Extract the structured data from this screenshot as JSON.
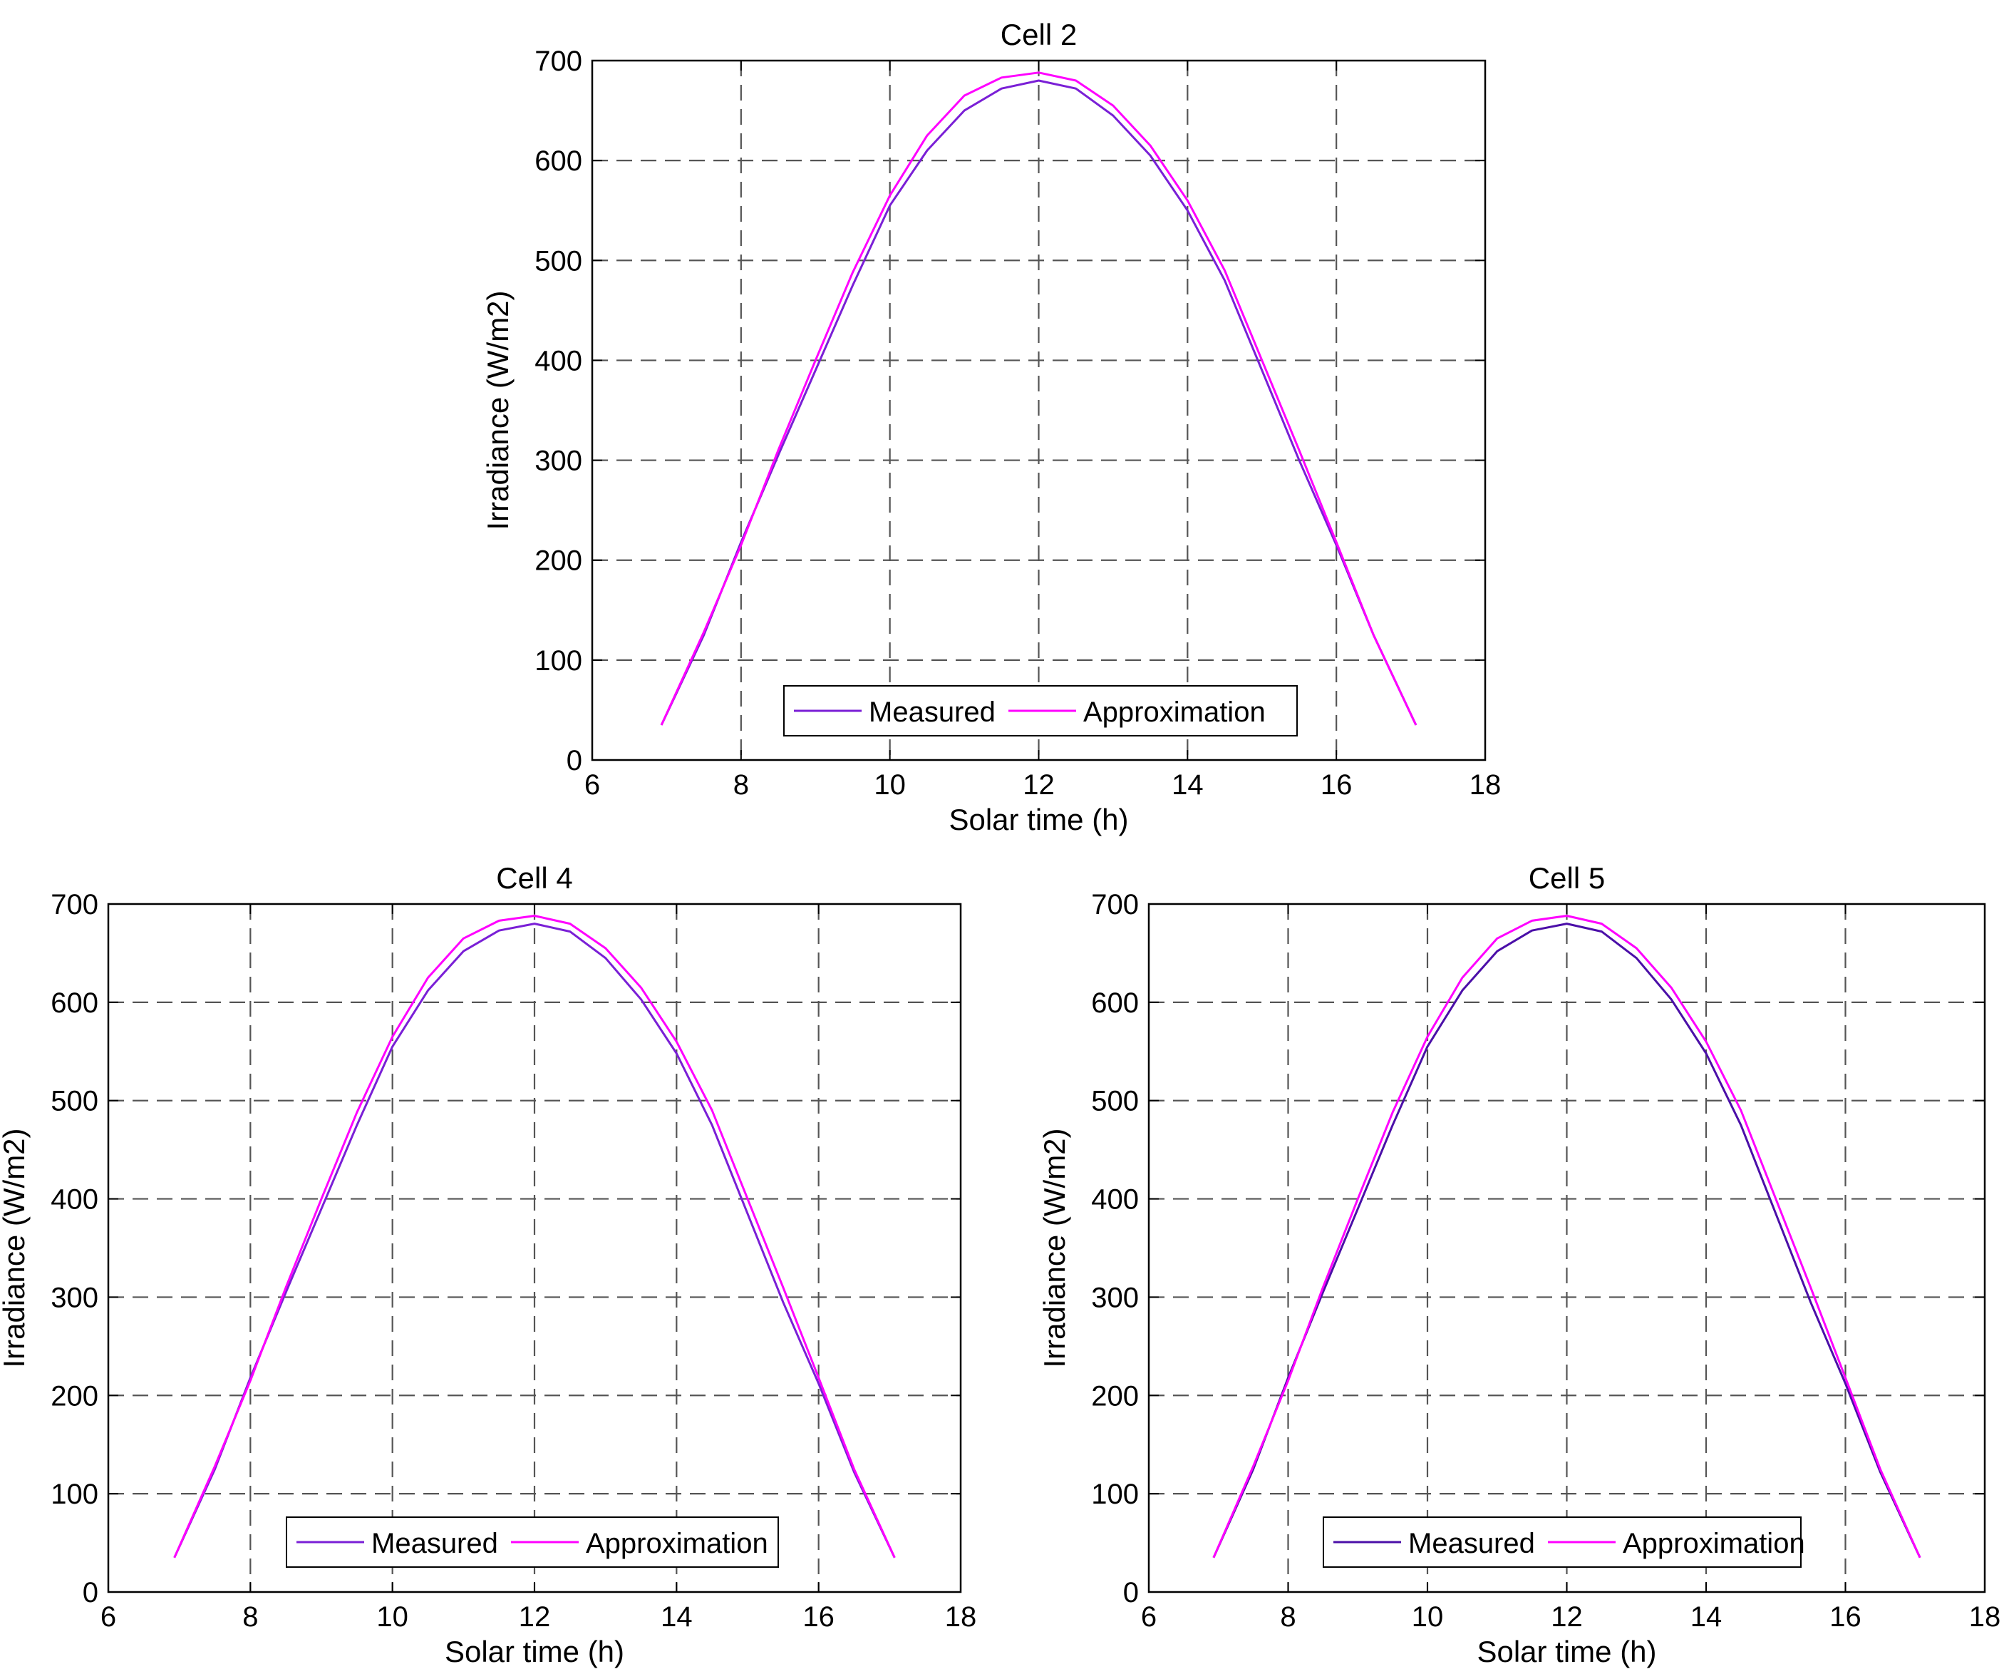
{
  "chart_data": [
    {
      "type": "line",
      "title": "Cell 2",
      "xlabel": "Solar time (h)",
      "ylabel": "Irradiance (W/m2)",
      "xlim": [
        6,
        18
      ],
      "ylim": [
        0,
        700
      ],
      "xticks": [
        "6",
        "8",
        "10",
        "12",
        "14",
        "16",
        "18"
      ],
      "yticks": [
        "0",
        "100",
        "200",
        "300",
        "400",
        "500",
        "600",
        "700"
      ],
      "grid": true,
      "legend": "bottom-center, horizontal",
      "series": [
        {
          "name": "Measured",
          "color": "#7a1fd6",
          "x": [
            6.93,
            7.5,
            8,
            8.5,
            9,
            9.5,
            10,
            10.5,
            11,
            11.5,
            12,
            12.5,
            13,
            13.5,
            14,
            14.5,
            15,
            15.5,
            16,
            16.5,
            17.07
          ],
          "y": [
            35,
            125,
            218,
            305,
            390,
            475,
            555,
            610,
            650,
            672,
            680,
            672,
            645,
            605,
            550,
            480,
            390,
            300,
            215,
            125,
            35
          ]
        },
        {
          "name": "Approximation",
          "color": "#ff00ff",
          "x": [
            6.93,
            7.5,
            8,
            8.5,
            9,
            9.5,
            10,
            10.5,
            11,
            11.5,
            12,
            12.5,
            13,
            13.5,
            14,
            14.5,
            15,
            15.5,
            16,
            16.5,
            17.07
          ],
          "y": [
            35,
            128,
            215,
            310,
            400,
            488,
            565,
            625,
            665,
            683,
            688,
            680,
            655,
            615,
            560,
            490,
            400,
            310,
            218,
            125,
            35
          ]
        }
      ]
    },
    {
      "type": "line",
      "title": "Cell 4",
      "xlabel": "Solar time (h)",
      "ylabel": "Irradiance (W/m2)",
      "xlim": [
        6,
        18
      ],
      "ylim": [
        0,
        700
      ],
      "xticks": [
        "6",
        "8",
        "10",
        "12",
        "14",
        "16",
        "18"
      ],
      "yticks": [
        "0",
        "100",
        "200",
        "300",
        "400",
        "500",
        "600",
        "700"
      ],
      "grid": true,
      "legend": "bottom-center, horizontal",
      "series": [
        {
          "name": "Measured",
          "color": "#7a1fd6",
          "x": [
            6.93,
            7.5,
            8,
            8.5,
            9,
            9.5,
            10,
            10.5,
            11,
            11.5,
            12,
            12.5,
            13,
            13.5,
            14,
            14.5,
            15,
            15.5,
            16,
            16.5,
            17.07
          ],
          "y": [
            35,
            125,
            218,
            305,
            390,
            475,
            555,
            612,
            652,
            673,
            680,
            672,
            645,
            603,
            548,
            475,
            385,
            295,
            212,
            122,
            35
          ]
        },
        {
          "name": "Approximation",
          "color": "#ff00ff",
          "x": [
            6.93,
            7.5,
            8,
            8.5,
            9,
            9.5,
            10,
            10.5,
            11,
            11.5,
            12,
            12.5,
            13,
            13.5,
            14,
            14.5,
            15,
            15.5,
            16,
            16.5,
            17.07
          ],
          "y": [
            35,
            128,
            215,
            310,
            400,
            488,
            565,
            625,
            665,
            683,
            688,
            680,
            655,
            615,
            560,
            490,
            400,
            310,
            218,
            125,
            35
          ]
        }
      ]
    },
    {
      "type": "line",
      "title": "Cell 5",
      "xlabel": "Solar time (h)",
      "ylabel": "Irradiance (W/m2)",
      "xlim": [
        6,
        18
      ],
      "ylim": [
        0,
        700
      ],
      "xticks": [
        "6",
        "8",
        "10",
        "12",
        "14",
        "16",
        "18"
      ],
      "yticks": [
        "0",
        "100",
        "200",
        "300",
        "400",
        "500",
        "600",
        "700"
      ],
      "grid": true,
      "legend": "bottom-center, horizontal",
      "series": [
        {
          "name": "Measured",
          "color": "#4b0fa8",
          "x": [
            6.93,
            7.5,
            8,
            8.5,
            9,
            9.5,
            10,
            10.5,
            11,
            11.5,
            12,
            12.5,
            13,
            13.5,
            14,
            14.5,
            15,
            15.5,
            16,
            16.5,
            17.07
          ],
          "y": [
            35,
            125,
            218,
            305,
            390,
            475,
            555,
            612,
            652,
            673,
            680,
            672,
            645,
            603,
            548,
            475,
            385,
            295,
            212,
            122,
            35
          ]
        },
        {
          "name": "Approximation",
          "color": "#ff00ff",
          "x": [
            6.93,
            7.5,
            8,
            8.5,
            9,
            9.5,
            10,
            10.5,
            11,
            11.5,
            12,
            12.5,
            13,
            13.5,
            14,
            14.5,
            15,
            15.5,
            16,
            16.5,
            17.07
          ],
          "y": [
            35,
            128,
            215,
            310,
            400,
            488,
            565,
            625,
            665,
            683,
            688,
            680,
            655,
            615,
            560,
            490,
            400,
            310,
            218,
            125,
            35
          ]
        }
      ]
    }
  ]
}
